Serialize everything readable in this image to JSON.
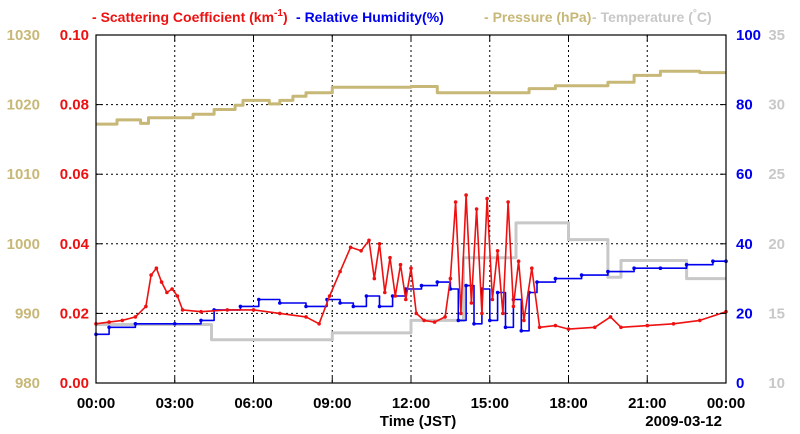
{
  "chart_data": {
    "type": "line",
    "title": "",
    "date_label": "2009-03-12",
    "xlabel": "Time (JST)",
    "xlim": [
      0,
      24
    ],
    "x_ticks": [
      0,
      3,
      6,
      9,
      12,
      15,
      18,
      21,
      24
    ],
    "x_tick_labels": [
      "00:00",
      "03:00",
      "06:00",
      "09:00",
      "12:00",
      "15:00",
      "18:00",
      "21:00",
      "00:00"
    ],
    "grid": true,
    "axes": {
      "pressure": {
        "range": [
          980,
          1030
        ],
        "ticks": [
          "980",
          "990",
          "1000",
          "1010",
          "1020",
          "1030"
        ],
        "color": "#c8b878"
      },
      "scattering": {
        "range": [
          0,
          0.1
        ],
        "ticks": [
          "0.00",
          "0.02",
          "0.04",
          "0.06",
          "0.08",
          "0.10"
        ],
        "color": "#ee1111"
      },
      "humidity": {
        "range": [
          0,
          100
        ],
        "ticks": [
          "0",
          "20",
          "40",
          "60",
          "80",
          "100"
        ],
        "color": "#0000ee"
      },
      "temperature": {
        "range": [
          10,
          35
        ],
        "ticks": [
          "10",
          "15",
          "20",
          "25",
          "30",
          "35"
        ],
        "color": "#c8c8c8"
      }
    },
    "legend": [
      {
        "label": "Scattering Coefficient (km",
        "sup": "-1",
        "close": ")",
        "color": "#ee1111"
      },
      {
        "label": "Relative Humidity(%)",
        "color": "#0000ee"
      },
      {
        "label": "Pressure (hPa)",
        "color": "#c8b878"
      },
      {
        "label": "Temperature (",
        "deg": "°",
        "close": "C)",
        "color": "#c8c8c8"
      }
    ],
    "series": [
      {
        "name": "Pressure (hPa)",
        "axis": "pressure",
        "color": "#c8b878",
        "step": true,
        "markers": false,
        "points": [
          [
            0,
            1017.2
          ],
          [
            0.8,
            1017.8
          ],
          [
            1.7,
            1017.3
          ],
          [
            2.0,
            1018.1
          ],
          [
            3.7,
            1018.6
          ],
          [
            4.5,
            1019.3
          ],
          [
            5.3,
            1019.9
          ],
          [
            5.6,
            1020.6
          ],
          [
            6.6,
            1020.1
          ],
          [
            7.0,
            1020.6
          ],
          [
            7.5,
            1021.2
          ],
          [
            8.0,
            1021.7
          ],
          [
            9.0,
            1022.5
          ],
          [
            12.0,
            1022.6
          ],
          [
            13.0,
            1021.7
          ],
          [
            16.5,
            1022.3
          ],
          [
            17.5,
            1022.7
          ],
          [
            19.5,
            1023.2
          ],
          [
            20.5,
            1024.2
          ],
          [
            21.5,
            1024.8
          ],
          [
            23.0,
            1024.6
          ],
          [
            24,
            1024.6
          ]
        ]
      },
      {
        "name": "Temperature (°C)",
        "axis": "temperature",
        "color": "#c8c8c8",
        "step": true,
        "markers": false,
        "points": [
          [
            0,
            14.2
          ],
          [
            4.4,
            14.2
          ],
          [
            4.4,
            13.1
          ],
          [
            9.0,
            13.1
          ],
          [
            9.0,
            13.6
          ],
          [
            12.0,
            13.6
          ],
          [
            12.0,
            14.5
          ],
          [
            14.0,
            14.5
          ],
          [
            14.0,
            19.0
          ],
          [
            16.0,
            19.0
          ],
          [
            16.0,
            21.5
          ],
          [
            18.0,
            21.5
          ],
          [
            18.0,
            20.3
          ],
          [
            19.5,
            20.3
          ],
          [
            19.5,
            17.6
          ],
          [
            20.0,
            17.6
          ],
          [
            20.0,
            18.8
          ],
          [
            22.5,
            18.8
          ],
          [
            22.5,
            17.5
          ],
          [
            24.0,
            17.5
          ]
        ]
      },
      {
        "name": "Relative Humidity(%)",
        "axis": "humidity",
        "color": "#0000ee",
        "step": true,
        "markers": true,
        "points": [
          [
            0,
            14
          ],
          [
            0.5,
            16
          ],
          [
            1.5,
            17
          ],
          [
            3.0,
            17
          ],
          [
            4.0,
            18
          ],
          [
            4.5,
            21
          ],
          [
            5.5,
            22
          ],
          [
            6.2,
            24
          ],
          [
            7.0,
            23
          ],
          [
            8.0,
            22
          ],
          [
            8.8,
            24
          ],
          [
            9.3,
            23
          ],
          [
            9.8,
            22
          ],
          [
            10.3,
            25
          ],
          [
            10.8,
            22
          ],
          [
            11.3,
            25
          ],
          [
            11.8,
            27
          ],
          [
            12.4,
            28
          ],
          [
            13.0,
            29
          ],
          [
            13.5,
            27
          ],
          [
            13.8,
            18
          ],
          [
            14.1,
            28
          ],
          [
            14.4,
            17
          ],
          [
            14.7,
            27
          ],
          [
            15.0,
            18
          ],
          [
            15.3,
            26
          ],
          [
            15.6,
            16
          ],
          [
            15.9,
            24
          ],
          [
            16.2,
            15
          ],
          [
            16.5,
            26
          ],
          [
            16.8,
            29
          ],
          [
            17.5,
            30
          ],
          [
            18.5,
            31
          ],
          [
            19.5,
            32
          ],
          [
            20.5,
            33
          ],
          [
            21.5,
            33
          ],
          [
            22.5,
            34
          ],
          [
            23.5,
            35
          ],
          [
            24.0,
            35
          ]
        ]
      },
      {
        "name": "Scattering Coefficient (km-1)",
        "axis": "scattering",
        "color": "#ee1111",
        "step": false,
        "markers": true,
        "points": [
          [
            0,
            0.017
          ],
          [
            0.5,
            0.0175
          ],
          [
            1.0,
            0.018
          ],
          [
            1.5,
            0.019
          ],
          [
            1.9,
            0.022
          ],
          [
            2.1,
            0.031
          ],
          [
            2.3,
            0.033
          ],
          [
            2.5,
            0.029
          ],
          [
            2.7,
            0.026
          ],
          [
            2.9,
            0.027
          ],
          [
            3.1,
            0.025
          ],
          [
            3.3,
            0.021
          ],
          [
            4.0,
            0.0205
          ],
          [
            5.0,
            0.021
          ],
          [
            6.0,
            0.021
          ],
          [
            7.0,
            0.02
          ],
          [
            8.0,
            0.019
          ],
          [
            8.5,
            0.017
          ],
          [
            8.9,
            0.025
          ],
          [
            9.3,
            0.032
          ],
          [
            9.7,
            0.039
          ],
          [
            10.1,
            0.038
          ],
          [
            10.4,
            0.041
          ],
          [
            10.6,
            0.03
          ],
          [
            10.8,
            0.04
          ],
          [
            11.0,
            0.026
          ],
          [
            11.2,
            0.036
          ],
          [
            11.4,
            0.025
          ],
          [
            11.6,
            0.034
          ],
          [
            11.8,
            0.024
          ],
          [
            12.0,
            0.033
          ],
          [
            12.2,
            0.02
          ],
          [
            12.5,
            0.018
          ],
          [
            12.9,
            0.0175
          ],
          [
            13.3,
            0.019
          ],
          [
            13.5,
            0.03
          ],
          [
            13.7,
            0.052
          ],
          [
            13.9,
            0.02
          ],
          [
            14.1,
            0.054
          ],
          [
            14.3,
            0.023
          ],
          [
            14.5,
            0.05
          ],
          [
            14.7,
            0.02
          ],
          [
            14.9,
            0.053
          ],
          [
            15.1,
            0.024
          ],
          [
            15.3,
            0.038
          ],
          [
            15.5,
            0.02
          ],
          [
            15.7,
            0.052
          ],
          [
            15.9,
            0.022
          ],
          [
            16.1,
            0.035
          ],
          [
            16.3,
            0.018
          ],
          [
            16.6,
            0.033
          ],
          [
            16.9,
            0.016
          ],
          [
            17.5,
            0.0165
          ],
          [
            18.0,
            0.0155
          ],
          [
            19.0,
            0.016
          ],
          [
            19.6,
            0.019
          ],
          [
            20.0,
            0.016
          ],
          [
            21.0,
            0.0165
          ],
          [
            22.0,
            0.017
          ],
          [
            23.0,
            0.018
          ],
          [
            24.0,
            0.0205
          ]
        ]
      }
    ]
  }
}
